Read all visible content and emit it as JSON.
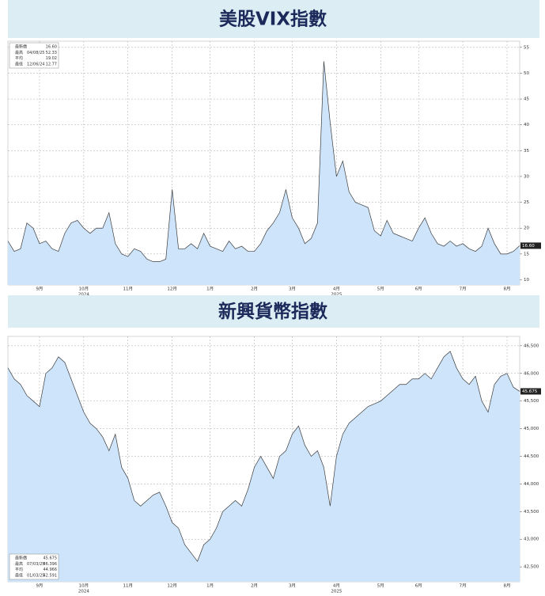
{
  "chart_data": [
    {
      "type": "area",
      "title": "美股VIX指數",
      "categories": [
        null,
        null,
        null,
        null,
        null,
        "9月",
        null,
        null,
        null,
        null,
        null,
        null,
        "10月",
        null,
        null,
        null,
        null,
        null,
        null,
        "11月",
        null,
        null,
        null,
        null,
        null,
        null,
        "12月",
        null,
        null,
        null,
        null,
        null,
        "1月",
        null,
        null,
        null,
        null,
        null,
        null,
        "2月",
        null,
        null,
        null,
        null,
        null,
        "3月",
        null,
        null,
        null,
        null,
        null,
        null,
        "4月",
        null,
        null,
        null,
        null,
        null,
        null,
        "5月",
        null,
        null,
        null,
        null,
        null,
        "6月",
        null,
        null,
        null,
        null,
        null,
        null,
        "7月",
        null,
        null,
        null,
        null,
        null,
        null,
        "8月",
        null,
        null
      ],
      "years": [
        null,
        null,
        null,
        null,
        null,
        null,
        null,
        null,
        null,
        null,
        null,
        null,
        "2024",
        null,
        null,
        null,
        null,
        null,
        null,
        null,
        null,
        null,
        null,
        null,
        null,
        null,
        null,
        null,
        null,
        null,
        null,
        null,
        null,
        null,
        null,
        null,
        null,
        null,
        null,
        null,
        null,
        null,
        null,
        null,
        null,
        null,
        null,
        null,
        null,
        null,
        null,
        null,
        "2025",
        null,
        null,
        null,
        null,
        null,
        null,
        null,
        null,
        null,
        null,
        null,
        null,
        null,
        null,
        null,
        null,
        null,
        null,
        null,
        null,
        null,
        null,
        null,
        null,
        null,
        null,
        null
      ],
      "values": [
        17.5,
        15.5,
        16,
        21,
        20,
        17,
        17.5,
        16,
        15.5,
        19,
        21,
        21.5,
        20,
        19,
        20,
        20,
        23,
        17,
        15,
        14.5,
        16,
        15.5,
        14,
        13.5,
        13.5,
        14,
        27.5,
        16,
        16,
        17,
        16,
        19,
        16.5,
        16,
        15.5,
        17.5,
        16,
        16.5,
        15.5,
        15.5,
        17,
        19.5,
        21,
        23,
        27.5,
        22,
        20,
        17,
        18,
        21,
        52.3,
        40.5,
        30,
        33,
        27,
        25,
        24.5,
        24,
        19.5,
        18.5,
        21.5,
        19,
        18.5,
        18,
        17.5,
        20,
        22,
        19,
        17,
        16.5,
        17.5,
        16.5,
        17,
        16,
        15.5,
        16.5,
        20,
        17,
        15,
        15,
        15.5,
        16.6
      ],
      "ylim": [
        9,
        56.2
      ],
      "yticks": [
        10,
        15,
        20,
        25,
        30,
        35,
        40,
        45,
        50,
        55
      ],
      "grid": true,
      "fill": "#cde4fb",
      "color": "#3c3c3c",
      "legend": [
        {
          "label": "最新價",
          "value": "16.60"
        },
        {
          "label": "最高",
          "date": "04/08/25",
          "value": "52.33"
        },
        {
          "label": "平均",
          "value": "19.02"
        },
        {
          "label": "最低",
          "date": "12/06/24",
          "value": "12.77"
        }
      ],
      "legend_corner": "top-left"
    },
    {
      "type": "area",
      "title": "新興貨幣指數",
      "categories": [
        null,
        null,
        null,
        null,
        null,
        "9月",
        null,
        null,
        null,
        null,
        null,
        null,
        "10月",
        null,
        null,
        null,
        null,
        null,
        null,
        "11月",
        null,
        null,
        null,
        null,
        null,
        null,
        "12月",
        null,
        null,
        null,
        null,
        null,
        "1月",
        null,
        null,
        null,
        null,
        null,
        null,
        "2月",
        null,
        null,
        null,
        null,
        null,
        "3月",
        null,
        null,
        null,
        null,
        null,
        null,
        "4月",
        null,
        null,
        null,
        null,
        null,
        null,
        "5月",
        null,
        null,
        null,
        null,
        null,
        "6月",
        null,
        null,
        null,
        null,
        null,
        null,
        "7月",
        null,
        null,
        null,
        null,
        null,
        null,
        "8月",
        null,
        null
      ],
      "years": [
        null,
        null,
        null,
        null,
        null,
        null,
        null,
        null,
        null,
        null,
        null,
        null,
        "2024",
        null,
        null,
        null,
        null,
        null,
        null,
        null,
        null,
        null,
        null,
        null,
        null,
        null,
        null,
        null,
        null,
        null,
        null,
        null,
        null,
        null,
        null,
        null,
        null,
        null,
        null,
        null,
        null,
        null,
        null,
        null,
        null,
        null,
        null,
        null,
        null,
        null,
        null,
        null,
        "2025",
        null,
        null,
        null,
        null,
        null,
        null,
        null,
        null,
        null,
        null,
        null,
        null,
        null,
        null,
        null,
        null,
        null,
        null,
        null,
        null,
        null,
        null,
        null,
        null,
        null,
        null,
        null
      ],
      "values": [
        46100,
        45900,
        45800,
        45600,
        45500,
        45400,
        46000,
        46100,
        46300,
        46200,
        45900,
        45600,
        45300,
        45100,
        45000,
        44850,
        44600,
        44900,
        44300,
        44100,
        43700,
        43600,
        43700,
        43800,
        43850,
        43600,
        43300,
        43200,
        42900,
        42750,
        42600,
        42900,
        43000,
        43200,
        43500,
        43600,
        43700,
        43600,
        43900,
        44300,
        44500,
        44300,
        44100,
        44500,
        44600,
        44900,
        45050,
        44700,
        44500,
        44600,
        44300,
        43600,
        44500,
        44900,
        45100,
        45200,
        45300,
        45400,
        45450,
        45500,
        45600,
        45700,
        45800,
        45800,
        45900,
        45900,
        46000,
        45900,
        46100,
        46300,
        46400,
        46100,
        45900,
        45800,
        45950,
        45500,
        45300,
        45800,
        45950,
        46000,
        45750,
        45675
      ],
      "ylim": [
        42230,
        46670
      ],
      "yticks": [
        {
          "value": 42500,
          "label": "42,500"
        },
        {
          "value": 43000,
          "label": "43,000"
        },
        {
          "value": 43500,
          "label": "43,500"
        },
        {
          "value": 44000,
          "label": "44,000"
        },
        {
          "value": 44500,
          "label": "44,500"
        },
        {
          "value": 45000,
          "label": "45,000"
        },
        {
          "value": 45500,
          "label": "45,500"
        },
        {
          "value": 46000,
          "label": "46,000"
        },
        {
          "value": 46500,
          "label": "46,500"
        }
      ],
      "grid": true,
      "fill": "#cde4fb",
      "color": "#3c3c3c",
      "legend": [
        {
          "label": "最新價",
          "value": "45.675"
        },
        {
          "label": "最高",
          "date": "07/03/25",
          "value": "46.396"
        },
        {
          "label": "平均",
          "value": "44.966"
        },
        {
          "label": "最低",
          "date": "01/03/25",
          "value": "42.591"
        }
      ],
      "legend_corner": "bottom-left"
    }
  ]
}
